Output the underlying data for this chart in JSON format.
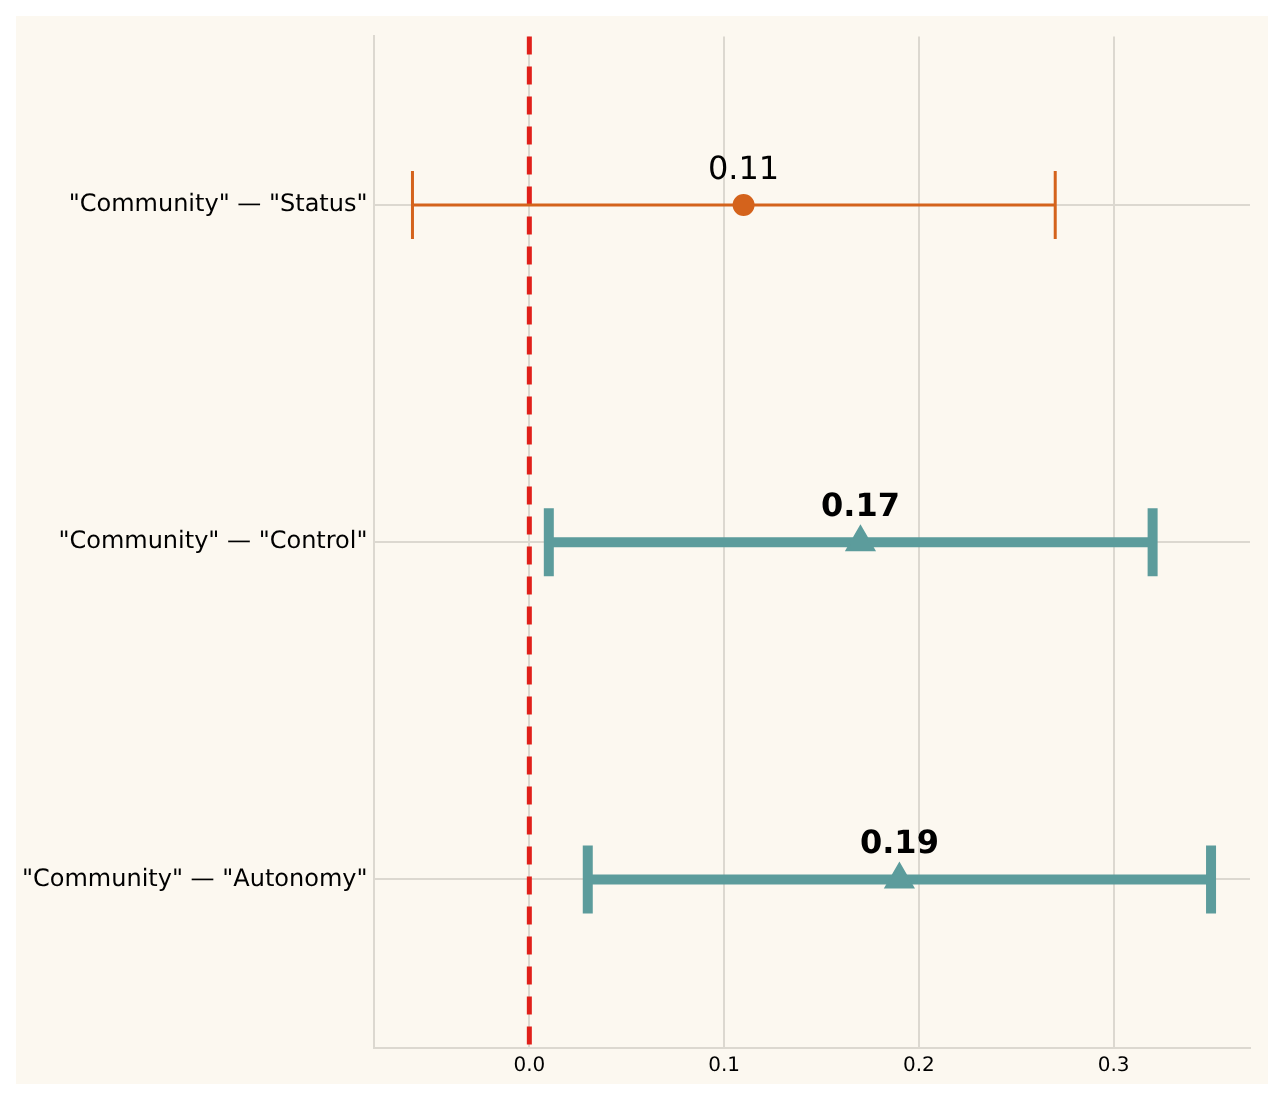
{
  "chart_data": {
    "type": "scatter",
    "orientation": "horizontal",
    "categories": [
      "\"Community\" — \"Status\"",
      "\"Community\" — \"Control\"",
      "\"Community\" — \"Autonomy\""
    ],
    "series": [
      {
        "color": "#d4631c",
        "marker": "circle",
        "values": [
          0.11,
          null,
          null
        ],
        "errors": [
          [
            -0.06,
            0.27
          ],
          null,
          null
        ]
      },
      {
        "color": "#5c9c9c",
        "marker": "triangle",
        "values": [
          null,
          0.17,
          0.19
        ],
        "errors": [
          null,
          [
            0.01,
            0.32
          ],
          [
            0.03,
            0.35
          ]
        ]
      }
    ],
    "xlim": [
      -0.08,
      0.37
    ],
    "xticks": [
      {
        "value": 0,
        "label": "0.0"
      },
      0.1,
      0.2,
      0.3
    ],
    "ref_lines": [
      {
        "axis": "x",
        "value": 0,
        "color": "#e0201a",
        "line_style": "dashed"
      }
    ],
    "grid": true,
    "data_labels": true,
    "legend": false
  }
}
